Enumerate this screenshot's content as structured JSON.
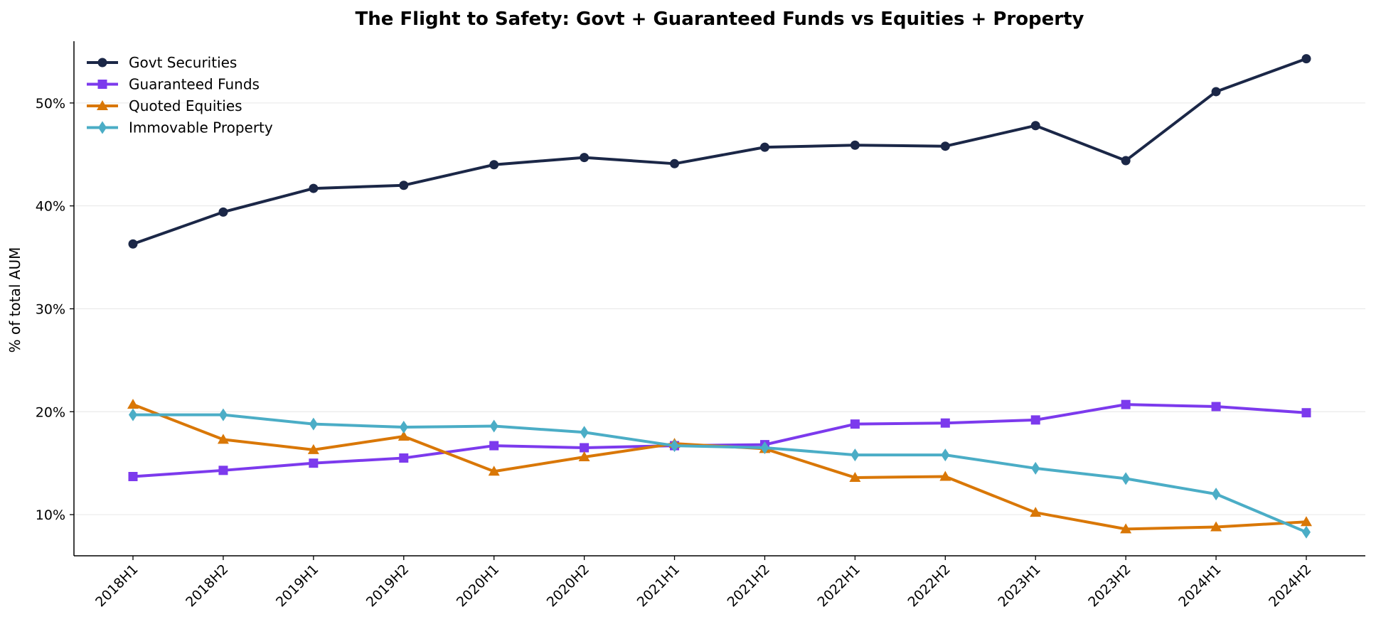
{
  "chart_data": {
    "type": "line",
    "title": "The Flight to Safety: Govt + Guaranteed Funds vs Equities + Property",
    "xlabel": "",
    "ylabel": "% of total AUM",
    "categories": [
      "2018H1",
      "2018H2",
      "2019H1",
      "2019H2",
      "2020H1",
      "2020H2",
      "2021H1",
      "2021H2",
      "2022H1",
      "2022H2",
      "2023H1",
      "2023H2",
      "2024H1",
      "2024H2"
    ],
    "ylim": [
      6,
      56
    ],
    "yticks": [
      10,
      20,
      30,
      40,
      50
    ],
    "ytick_labels": [
      "10%",
      "20%",
      "30%",
      "40%",
      "50%"
    ],
    "grid": "horizontal",
    "legend_position": "top-left",
    "series": [
      {
        "name": "Govt Securities",
        "color": "#1b2747",
        "marker": "circle",
        "values": [
          36.3,
          39.4,
          41.7,
          42.0,
          44.0,
          44.7,
          44.1,
          45.7,
          45.9,
          45.8,
          47.8,
          44.4,
          51.1,
          54.3
        ]
      },
      {
        "name": "Guaranteed Funds",
        "color": "#7c3aed",
        "marker": "square",
        "values": [
          13.7,
          14.3,
          15.0,
          15.5,
          16.7,
          16.5,
          16.7,
          16.8,
          18.8,
          18.9,
          19.2,
          20.7,
          20.5,
          19.9
        ]
      },
      {
        "name": "Quoted Equities",
        "color": "#d97706",
        "marker": "triangle",
        "values": [
          20.7,
          17.3,
          16.3,
          17.6,
          14.2,
          15.6,
          16.9,
          16.4,
          13.6,
          13.7,
          10.2,
          8.6,
          8.8,
          9.3
        ]
      },
      {
        "name": "Immovable Property",
        "color": "#4badc6",
        "marker": "diamond",
        "values": [
          19.7,
          19.7,
          18.8,
          18.5,
          18.6,
          18.0,
          16.7,
          16.5,
          15.8,
          15.8,
          14.5,
          13.5,
          12.0,
          8.3
        ]
      }
    ]
  }
}
